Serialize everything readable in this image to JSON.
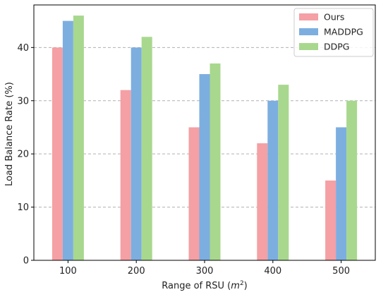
{
  "chart_data": {
    "type": "bar",
    "title": "",
    "xlabel": "Range of RSU (",
    "xlabel_var": "m",
    "xlabel_sup": "2",
    "xlabel_end": ")",
    "ylabel": "Load Balance Rate (%)",
    "categories": [
      "100",
      "200",
      "300",
      "400",
      "500"
    ],
    "series": [
      {
        "name": "Ours",
        "color": "#f4a0a4",
        "values": [
          40,
          32,
          25,
          22,
          15
        ]
      },
      {
        "name": "MADDPG",
        "color": "#7daee0",
        "values": [
          45,
          40,
          35,
          30,
          25
        ]
      },
      {
        "name": "DDPG",
        "color": "#a8d88e",
        "values": [
          46,
          42,
          37,
          33,
          30
        ]
      }
    ],
    "ylim": [
      0,
      48
    ],
    "yticks": [
      0,
      10,
      20,
      30,
      40
    ],
    "grid": "horizontal-dashed",
    "legend_position": "top-right"
  }
}
